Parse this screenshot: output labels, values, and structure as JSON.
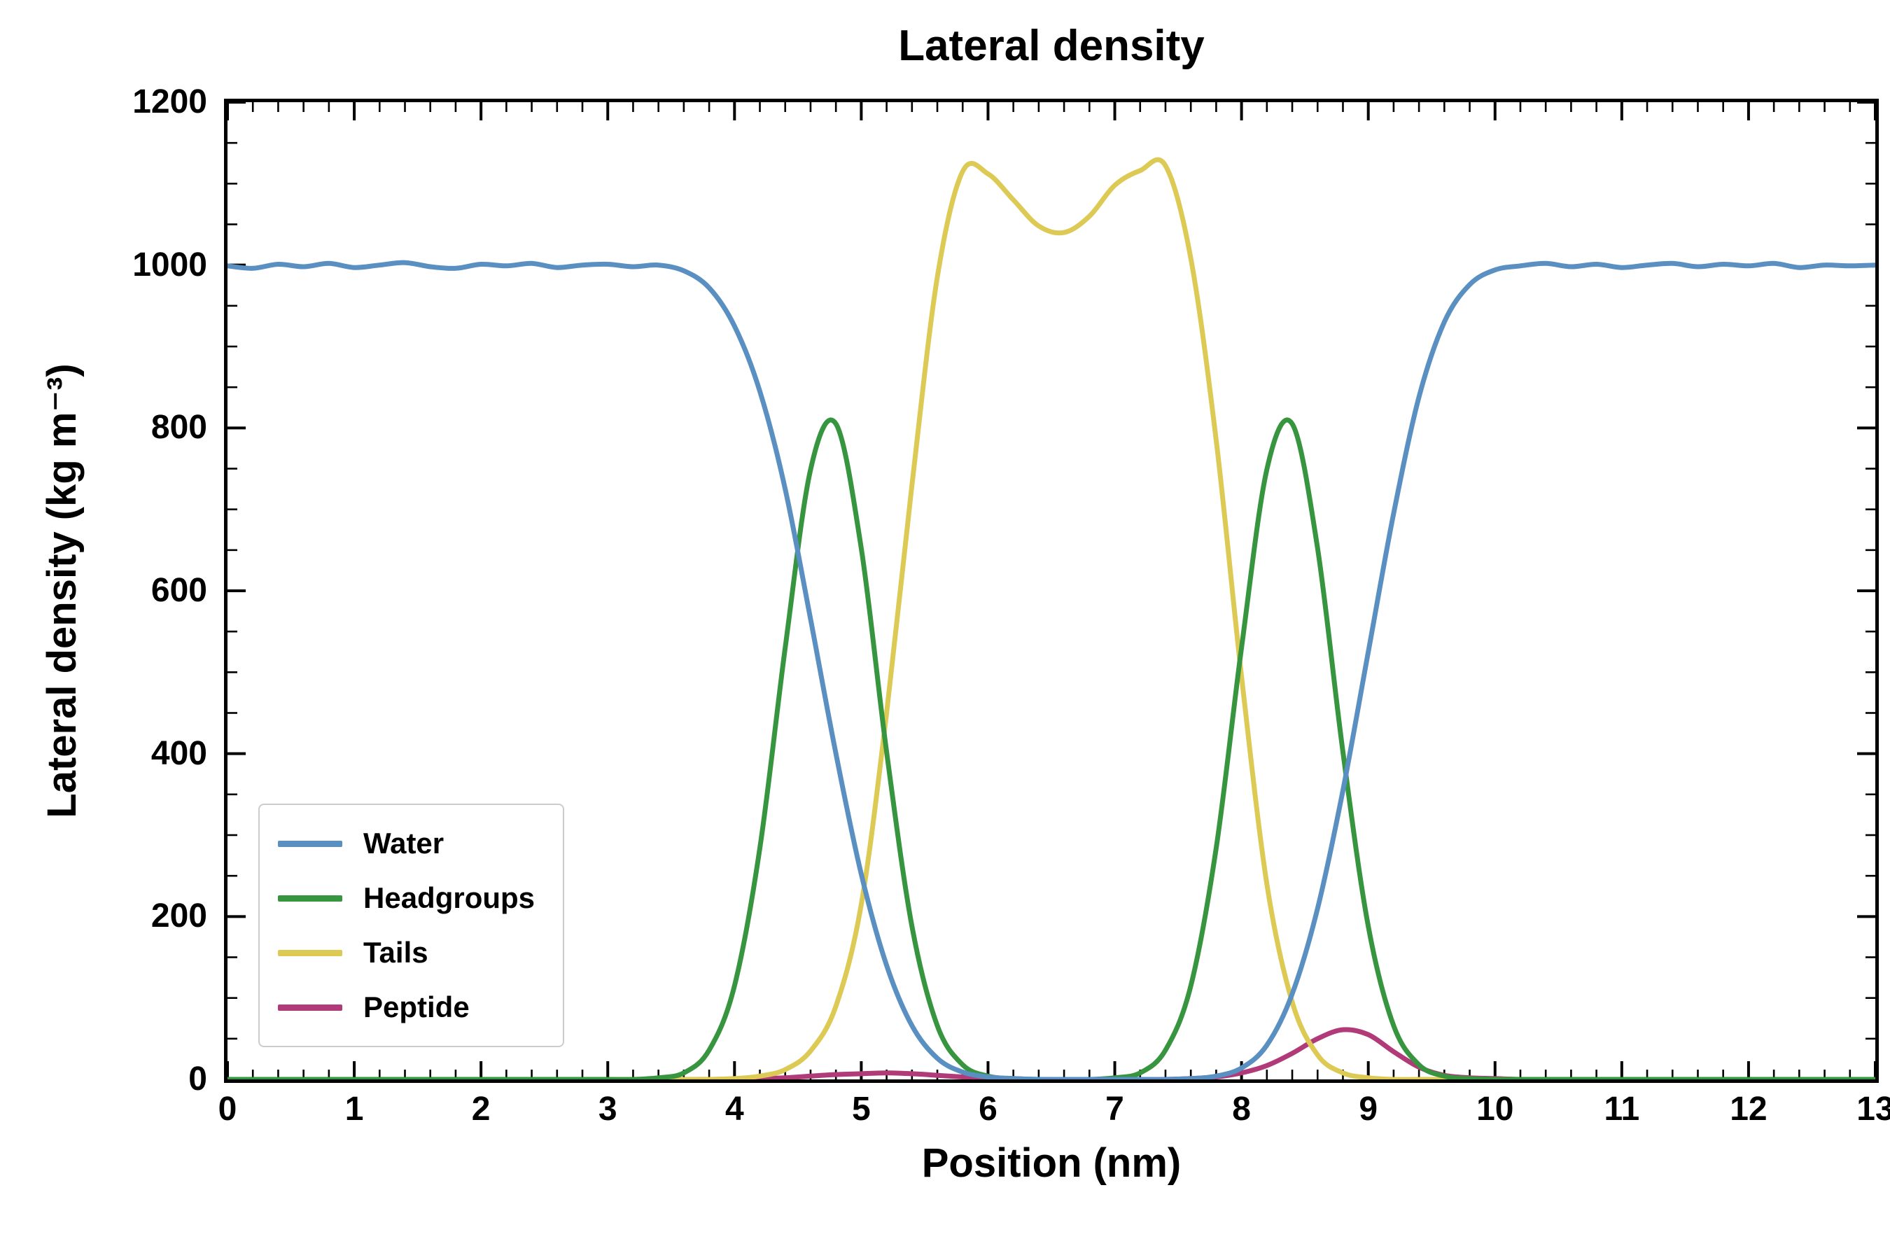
{
  "chart_data": {
    "type": "line",
    "title": "Lateral density",
    "xlabel": "Position (nm)",
    "ylabel": "Lateral density (kg m⁻³)",
    "xlim": [
      0,
      13
    ],
    "ylim": [
      0,
      1200
    ],
    "x_ticks": [
      0,
      1,
      2,
      3,
      4,
      5,
      6,
      7,
      8,
      9,
      10,
      11,
      12,
      13
    ],
    "y_ticks": [
      0,
      200,
      400,
      600,
      800,
      1000,
      1200
    ],
    "x_minor_step": 0.2,
    "y_minor_step": 50,
    "grid": false,
    "legend_position": "lower-left",
    "x_start": 0,
    "x_step": 0.2,
    "series": [
      {
        "name": "Water",
        "color": "#5a8fc2",
        "values": [
          999,
          996,
          1001,
          998,
          1002,
          997,
          1000,
          1003,
          998,
          996,
          1001,
          999,
          1002,
          997,
          1000,
          1001,
          998,
          1000,
          993,
          972,
          925,
          845,
          725,
          565,
          400,
          252,
          140,
          66,
          26,
          9,
          3,
          1,
          0,
          0,
          0,
          0,
          0,
          0,
          1,
          4,
          14,
          42,
          105,
          210,
          355,
          525,
          695,
          838,
          930,
          976,
          994,
          999,
          1002,
          998,
          1001,
          997,
          1000,
          1002,
          998,
          1001,
          999,
          1002,
          997,
          1000,
          999,
          1000
        ]
      },
      {
        "name": "Headgroups",
        "color": "#36953e",
        "values": [
          0,
          0,
          0,
          0,
          0,
          0,
          0,
          0,
          0,
          0,
          0,
          0,
          0,
          0,
          0,
          0,
          0,
          2,
          8,
          36,
          115,
          284,
          530,
          749,
          805,
          652,
          402,
          188,
          66,
          18,
          4,
          1,
          0,
          0,
          0,
          2,
          8,
          36,
          115,
          284,
          530,
          749,
          805,
          652,
          402,
          188,
          66,
          18,
          4,
          1,
          0,
          0,
          0,
          0,
          0,
          0,
          0,
          0,
          0,
          0,
          0,
          0,
          0,
          0,
          0,
          0
        ]
      },
      {
        "name": "Tails",
        "color": "#ddca55",
        "values": [
          0,
          0,
          0,
          0,
          0,
          0,
          0,
          0,
          0,
          0,
          0,
          0,
          0,
          0,
          0,
          0,
          0,
          0,
          0,
          0,
          1,
          4,
          12,
          35,
          90,
          215,
          450,
          730,
          985,
          1115,
          1112,
          1080,
          1048,
          1040,
          1060,
          1098,
          1116,
          1122,
          1008,
          785,
          495,
          240,
          95,
          30,
          8,
          2,
          0,
          0,
          0,
          0,
          0,
          0,
          0,
          0,
          0,
          0,
          0,
          0,
          0,
          0,
          0,
          0,
          0,
          0,
          0,
          0
        ]
      },
      {
        "name": "Peptide",
        "color": "#b13a78",
        "values": [
          0,
          0,
          0,
          0,
          0,
          0,
          0,
          0,
          0,
          0,
          0,
          0,
          0,
          0,
          0,
          0,
          0,
          0,
          0,
          0,
          0,
          1,
          2,
          4,
          6,
          7,
          8,
          7,
          5,
          3,
          1,
          0,
          0,
          0,
          0,
          0,
          0,
          0,
          1,
          3,
          8,
          17,
          32,
          50,
          61,
          55,
          34,
          15,
          5,
          2,
          1,
          0,
          0,
          0,
          0,
          0,
          0,
          0,
          0,
          0,
          0,
          0,
          0,
          0,
          0,
          0
        ]
      }
    ]
  }
}
